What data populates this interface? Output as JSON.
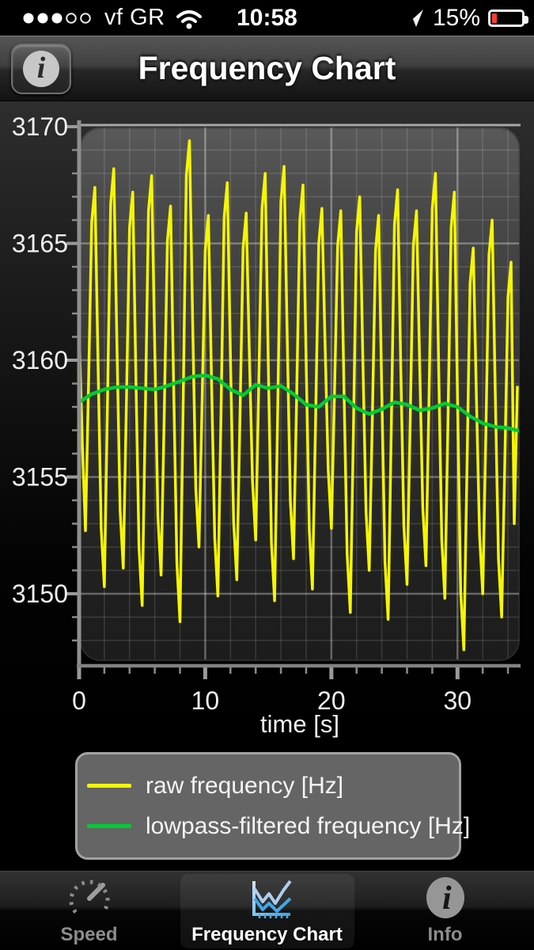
{
  "status": {
    "carrier": "vf GR",
    "time": "10:58",
    "battery_pct": "15%"
  },
  "nav": {
    "title": "Frequency Chart",
    "info_glyph": "i"
  },
  "legend": {
    "position": "bottom"
  },
  "tabs": [
    {
      "label": "Speed",
      "selected": false
    },
    {
      "label": "Frequency Chart",
      "selected": true
    },
    {
      "label": "Info",
      "selected": false
    }
  ],
  "colors": {
    "raw_series": "#f6f600",
    "filtered_series": "#00cc33",
    "battery_low": "#ff3b30",
    "tab_icon_blue_light": "#aecdf0",
    "tab_icon_blue": "#41a8e8"
  },
  "chart_data": {
    "type": "line",
    "title": "",
    "xlabel": "time [s]",
    "ylabel": "",
    "grid": true,
    "legend_position": "below",
    "x_axis": {
      "min": 0,
      "max": 35,
      "major_ticks": [
        0,
        10,
        20,
        30
      ],
      "tick_labels": [
        "0",
        "10",
        "20",
        "30"
      ],
      "minor_step": 2,
      "title": "time [s]"
    },
    "y_axis": {
      "min": 3147,
      "max": 3170,
      "major_ticks": [
        3150,
        3155,
        3160,
        3165,
        3170
      ],
      "tick_labels": [
        "3150",
        "3155",
        "3160",
        "3165",
        "3170"
      ],
      "minor_step": 1
    },
    "series": [
      {
        "name": "raw frequency [Hz]",
        "color": "#f6f600",
        "t_start": 0,
        "t_step": 0.25,
        "values": [
          3161.3,
          3156.5,
          3152.7,
          3159.1,
          3165.9,
          3167.4,
          3159.9,
          3152.8,
          3150.3,
          3158.3,
          3166.7,
          3168.2,
          3160.7,
          3153.6,
          3151.1,
          3158.2,
          3165.7,
          3167.2,
          3159.4,
          3152.0,
          3149.5,
          3157.7,
          3166.4,
          3167.9,
          3160.4,
          3153.3,
          3150.8,
          3157.7,
          3165.1,
          3166.6,
          3158.7,
          3151.3,
          3148.8,
          3158.1,
          3167.9,
          3169.4,
          3161.7,
          3154.5,
          3152.0,
          3158.1,
          3164.7,
          3166.2,
          3159.1,
          3152.4,
          3149.9,
          3157.8,
          3166.1,
          3167.6,
          3160.1,
          3153.1,
          3150.6,
          3157.5,
          3164.8,
          3166.3,
          3160.3,
          3154.8,
          3152.3,
          3159.2,
          3166.5,
          3168.0,
          3159.9,
          3152.2,
          3149.7,
          3158.0,
          3166.8,
          3168.3,
          3160.9,
          3154.0,
          3151.5,
          3158.5,
          3166.0,
          3167.5,
          3159.9,
          3152.7,
          3150.2,
          3157.4,
          3165.0,
          3166.5,
          3160.7,
          3155.3,
          3152.8,
          3158.6,
          3164.9,
          3166.4,
          3158.8,
          3151.7,
          3149.2,
          3157.1,
          3165.5,
          3167.0,
          3160.0,
          3153.5,
          3151.0,
          3157.6,
          3164.7,
          3166.2,
          3158.6,
          3151.4,
          3148.9,
          3157.1,
          3165.8,
          3167.3,
          3159.9,
          3152.9,
          3150.4,
          3157.4,
          3164.9,
          3166.4,
          3159.8,
          3153.7,
          3151.2,
          3158.6,
          3166.5,
          3168.0,
          3159.9,
          3152.3,
          3149.8,
          3157.5,
          3165.7,
          3167.2,
          3158.4,
          3150.1,
          3147.6,
          3155.2,
          3163.3,
          3164.8,
          3158.4,
          3152.5,
          3150.0,
          3157.0,
          3164.5,
          3166.0,
          3158.5,
          3151.5,
          3149.0,
          3155.6,
          3162.7,
          3164.2,
          3153.0,
          3158.9
        ]
      },
      {
        "name": "lowpass-filtered frequency [Hz]",
        "color": "#00cc33",
        "t_start": 0,
        "t_step": 1,
        "values": [
          3158.2,
          3158.55,
          3158.75,
          3158.85,
          3158.85,
          3158.8,
          3158.75,
          3158.9,
          3159.1,
          3159.3,
          3159.35,
          3159.2,
          3158.75,
          3158.5,
          3158.95,
          3158.8,
          3158.9,
          3158.55,
          3158.1,
          3158.0,
          3158.45,
          3158.45,
          3157.95,
          3157.7,
          3157.9,
          3158.2,
          3158.1,
          3157.85,
          3157.95,
          3158.15,
          3158.0,
          3157.6,
          3157.3,
          3157.15,
          3157.1,
          3156.95
        ]
      }
    ]
  }
}
